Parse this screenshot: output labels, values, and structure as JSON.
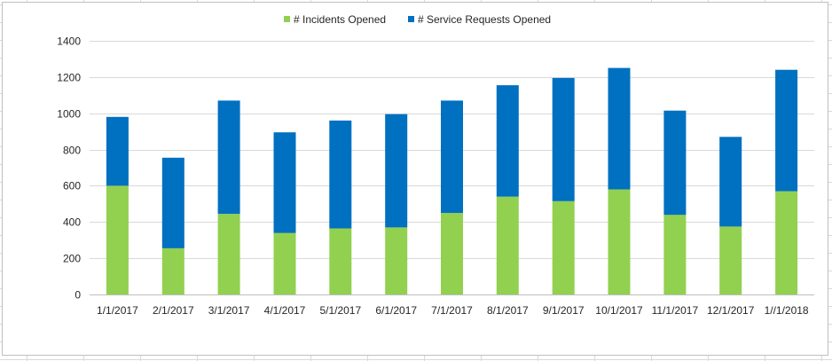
{
  "chart_data": {
    "type": "bar",
    "stacked": true,
    "categories": [
      "1/1/2017",
      "2/1/2017",
      "3/1/2017",
      "4/1/2017",
      "5/1/2017",
      "6/1/2017",
      "7/1/2017",
      "8/1/2017",
      "9/1/2017",
      "10/1/2017",
      "11/1/2017",
      "12/1/2017",
      "1//1/2018"
    ],
    "series": [
      {
        "name": "# Incidents Opened",
        "color": "#92d050",
        "values": [
          600,
          255,
          445,
          340,
          365,
          370,
          450,
          540,
          515,
          580,
          440,
          375,
          570
        ]
      },
      {
        "name": "# Service Requests Opened",
        "color": "#0070c0",
        "values": [
          380,
          500,
          625,
          555,
          595,
          625,
          620,
          615,
          680,
          670,
          575,
          495,
          670
        ]
      }
    ],
    "ylim": [
      0,
      1400
    ],
    "yticks": [
      0,
      200,
      400,
      600,
      800,
      1000,
      1200,
      1400
    ],
    "grid": true,
    "legend_position": "top"
  }
}
